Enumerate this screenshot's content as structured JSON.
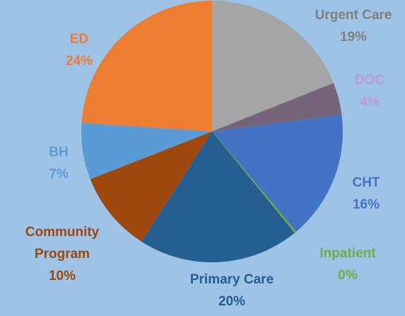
{
  "chart_data": {
    "type": "pie",
    "categories": [
      "Urgent Care",
      "DOC",
      "CHT",
      "Inpatient",
      "Primary Care",
      "Community Program",
      "BH",
      "ED"
    ],
    "values": [
      19,
      4,
      16,
      0.2,
      20,
      10,
      7,
      24
    ],
    "value_labels": [
      "19%",
      "4%",
      "16%",
      "0%",
      "20%",
      "10%",
      "7%",
      "24%"
    ],
    "colors": [
      "#a5a5a5",
      "#76657a",
      "#4472c4",
      "#70ad47",
      "#255e91",
      "#9e480e",
      "#5b9bd5",
      "#ed7d31"
    ],
    "label_colors": [
      "#7f7f7f",
      "#c09ad4",
      "#4472c4",
      "#70ad47",
      "#255e91",
      "#9e480e",
      "#5b9bd5",
      "#ed7d31"
    ]
  }
}
